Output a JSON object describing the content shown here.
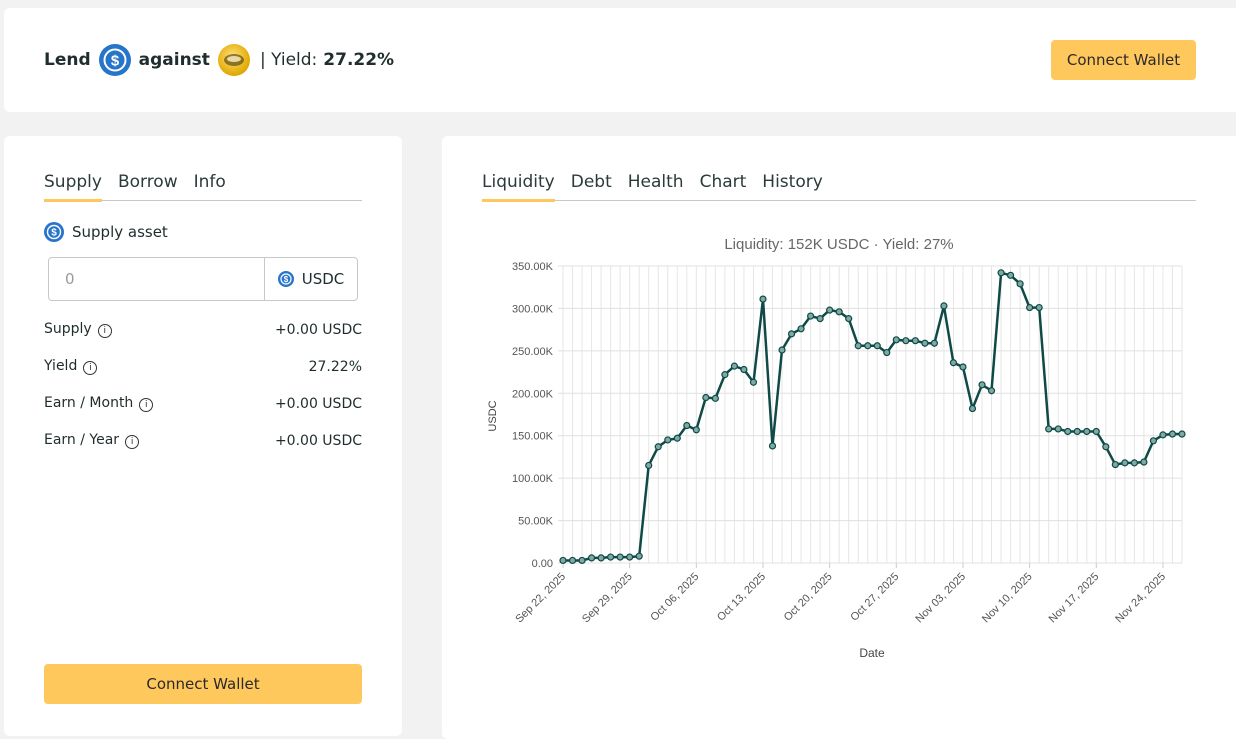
{
  "header": {
    "lend_label": "Lend",
    "against_label": "against",
    "yield_prefix": "| Yield:",
    "yield_value": "27.22%",
    "connect_label": "Connect Wallet"
  },
  "left_panel": {
    "tabs": [
      {
        "label": "Supply",
        "active": true
      },
      {
        "label": "Borrow",
        "active": false
      },
      {
        "label": "Info",
        "active": false
      }
    ],
    "asset_label": "Supply asset",
    "amount_placeholder": "0",
    "asset_name": "USDC",
    "stats": [
      {
        "label": "Supply",
        "value": "+0.00 USDC"
      },
      {
        "label": "Yield",
        "value": "27.22%"
      },
      {
        "label": "Earn / Month",
        "value": "+0.00 USDC"
      },
      {
        "label": "Earn / Year",
        "value": "+0.00 USDC"
      }
    ],
    "connect_label": "Connect Wallet"
  },
  "right_panel": {
    "tabs": [
      {
        "label": "Liquidity",
        "active": true
      },
      {
        "label": "Debt",
        "active": false
      },
      {
        "label": "Health",
        "active": false
      },
      {
        "label": "Chart",
        "active": false
      },
      {
        "label": "History",
        "active": false
      }
    ]
  },
  "colors": {
    "accent": "#ffc85c",
    "line": "#0f4a46",
    "usdc": "#2775ca"
  },
  "chart_data": {
    "type": "line",
    "title": "Liquidity: 152K USDC · Yield: 27%",
    "xlabel": "Date",
    "ylabel": "USDC",
    "ylim": [
      0,
      350000
    ],
    "yticks": [
      "0.00",
      "50.00K",
      "100.00K",
      "150.00K",
      "200.00K",
      "250.00K",
      "300.00K",
      "350.00K"
    ],
    "xtick_labels": [
      "Sep 22, 2025",
      "Sep 29, 2025",
      "Oct 06, 2025",
      "Oct 13, 2025",
      "Oct 20, 2025",
      "Oct 27, 2025",
      "Nov 03, 2025",
      "Nov 10, 2025",
      "Nov 17, 2025",
      "Nov 24, 2025"
    ],
    "grid": true,
    "series": [
      {
        "values": [
          3000,
          3000,
          3000,
          6000,
          6000,
          7000,
          7000,
          7000,
          8000,
          115000,
          137000,
          145000,
          147000,
          162000,
          157000,
          195000,
          194000,
          222000,
          232000,
          228000,
          213000,
          311000,
          138000,
          251000,
          270000,
          276000,
          291000,
          288000,
          298000,
          296000,
          288000,
          256000,
          256000,
          256000,
          248000,
          263000,
          262000,
          262000,
          259000,
          259000,
          303000,
          236000,
          231000,
          182000,
          210000,
          203000,
          342000,
          339000,
          329000,
          301000,
          301000,
          158000,
          158000,
          155000,
          155000,
          155000,
          155000,
          137000,
          116000,
          118000,
          118000,
          119000,
          144000,
          151000,
          152000,
          152000
        ]
      }
    ]
  }
}
